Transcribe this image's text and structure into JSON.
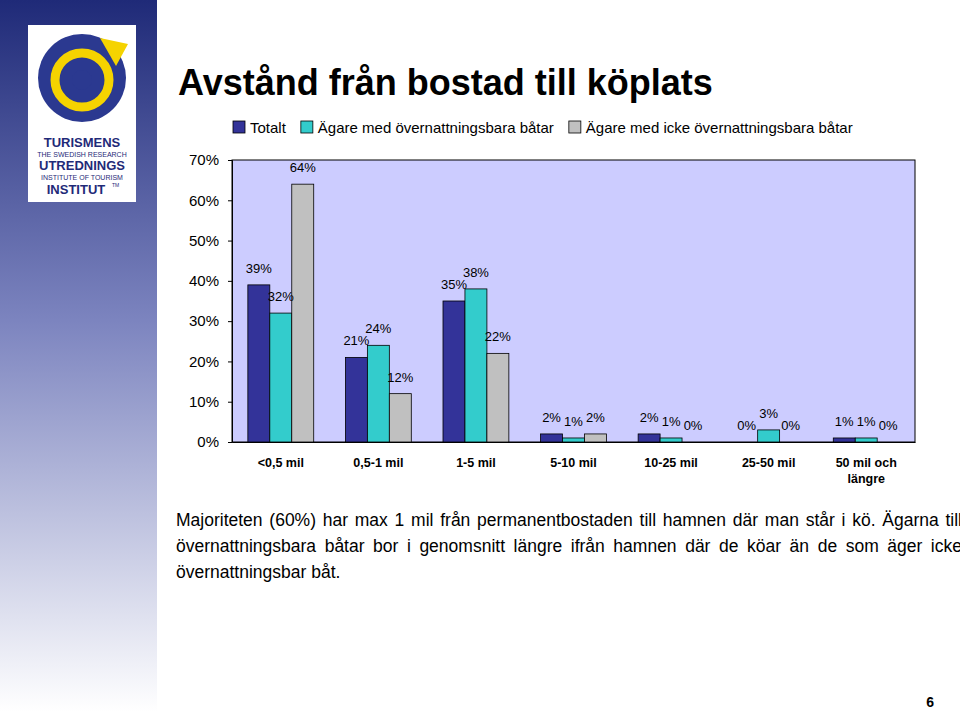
{
  "chart_data": {
    "type": "bar",
    "title": "Avstånd från bostad till köplats",
    "categories": [
      "<0,5 mil",
      "0,5-1 mil",
      "1-5 mil",
      "5-10 mil",
      "10-25 mil",
      "25-50 mil",
      "50 mil och längre"
    ],
    "series": [
      {
        "name": "Totalt",
        "color": "#333399",
        "values": [
          39,
          21,
          35,
          2,
          2,
          0,
          1
        ],
        "value_labels": [
          "39%",
          "21%",
          "35%",
          "2%",
          "2%",
          "0%",
          "1%"
        ]
      },
      {
        "name": "Ägare med övernattningsbara båtar",
        "color": "#33CCCC",
        "values": [
          32,
          24,
          38,
          1,
          1,
          3,
          1
        ],
        "value_labels": [
          "32%",
          "24%",
          "38%",
          "1%",
          "1%",
          "3%",
          "1%"
        ]
      },
      {
        "name": "Ägare med icke övernattningsbara båtar",
        "color": "#C0C0C0",
        "values": [
          64,
          12,
          22,
          2,
          0,
          0,
          0
        ],
        "value_labels": [
          "64%",
          "12%",
          "22%",
          "2%",
          "0%",
          "0%",
          "0%"
        ]
      }
    ],
    "ylim": [
      0,
      70
    ],
    "yticks": [
      {
        "value": 0,
        "label": "0%"
      },
      {
        "value": 10,
        "label": "10%"
      },
      {
        "value": 20,
        "label": "20%"
      },
      {
        "value": 30,
        "label": "30%"
      },
      {
        "value": 40,
        "label": "40%"
      },
      {
        "value": 50,
        "label": "50%"
      },
      {
        "value": 60,
        "label": "60%"
      },
      {
        "value": 70,
        "label": "70%"
      }
    ],
    "grid": false,
    "legend": "top",
    "data_labels": true
  },
  "page": {
    "logo_lines": [
      "TURISMENS",
      "THE SWEDISH RESEARCH",
      "UTREDNINGS",
      "INSTITUTE OF TOURISM",
      "INSTITUT",
      "TM"
    ],
    "caption": "Majoriteten (60%) har max 1 mil från permanentbostaden till hamnen där man står i kö. Ägarna till övernattningsbara båtar bor i genomsnitt längre ifrån hamnen där de köar än de som äger icke övernattningsbar båt.",
    "page_number": "6"
  }
}
